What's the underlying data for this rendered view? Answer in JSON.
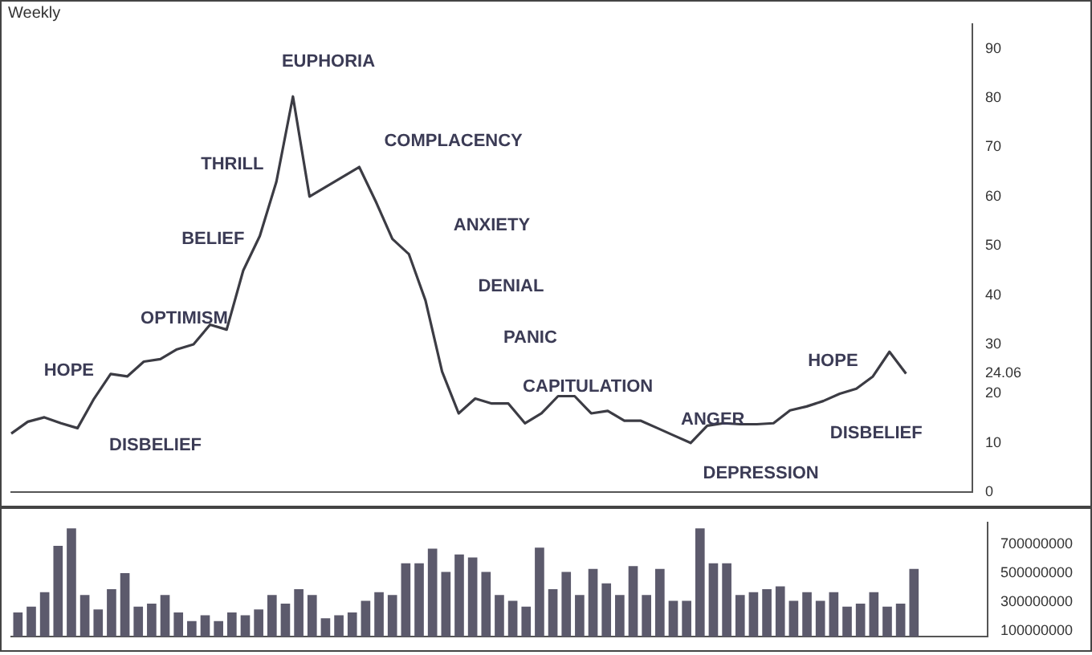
{
  "chart_data": [
    {
      "type": "line",
      "title": "Weekly",
      "categories": [
        null,
        null,
        null,
        null,
        null,
        null,
        null,
        null,
        null,
        null,
        null,
        null,
        null,
        null,
        null,
        null,
        null,
        null,
        null,
        null,
        null,
        null,
        null,
        null,
        null,
        null,
        null,
        null,
        null,
        null,
        null,
        null,
        null,
        null,
        null,
        null,
        null,
        null,
        null,
        null,
        null,
        null,
        null,
        null,
        null,
        null,
        null,
        null,
        null,
        null,
        null,
        null,
        null,
        null,
        null,
        null,
        null,
        null,
        null
      ],
      "series": [
        {
          "color": "#3c3c44",
          "values": [
            11.9,
            14.3,
            15.2,
            14,
            13,
            19,
            24,
            23.5,
            26.5,
            27,
            29,
            30,
            34,
            33,
            45,
            52,
            63,
            80.3,
            60,
            62,
            64,
            66,
            59,
            51.4,
            48.3,
            38.9,
            24.5,
            16,
            19,
            18,
            18,
            14,
            16,
            19.5,
            19.5,
            16,
            16.5,
            14.5,
            14.5,
            13,
            11.5,
            10,
            13.5,
            14,
            13.8,
            13.8,
            14,
            16.6,
            17.4,
            18.5,
            20,
            21,
            23.5,
            28.5,
            24.06,
            null,
            null,
            null,
            null
          ]
        }
      ],
      "ylim": [
        0,
        95
      ],
      "yticks": [
        0,
        10,
        20,
        {
          "value": 24.06,
          "label": "24.06"
        },
        30,
        40,
        50,
        60,
        70,
        80,
        90
      ],
      "annotations": [
        "EUPHORIA",
        "THRILL",
        "COMPLACENCY",
        "BELIEF",
        "ANXIETY",
        "DENIAL",
        "OPTIMISM",
        "PANIC",
        "HOPE",
        "CAPITULATION",
        "ANGER",
        "DISBELIEF",
        "DEPRESSION",
        "HOPE",
        "DISBELIEF"
      ],
      "grid": false,
      "legend": false,
      "marker": "none",
      "line_style": "solid"
    },
    {
      "type": "bar",
      "categories": [
        null,
        null,
        null,
        null,
        null,
        null,
        null,
        null,
        null,
        null,
        null,
        null,
        null,
        null,
        null,
        null,
        null,
        null,
        null,
        null,
        null,
        null,
        null,
        null,
        null,
        null,
        null,
        null,
        null,
        null,
        null,
        null,
        null,
        null,
        null,
        null,
        null,
        null,
        null,
        null,
        null,
        null,
        null,
        null,
        null,
        null,
        null,
        null,
        null,
        null,
        null,
        null,
        null,
        null,
        null,
        null,
        null,
        null,
        null,
        null,
        null,
        null,
        null,
        null,
        null,
        null,
        null,
        null,
        null,
        null,
        null,
        null,
        null
      ],
      "series": [
        {
          "color": "#5c5a6c",
          "values": [
            228000000,
            268000000,
            368000000,
            688000000,
            808000000,
            348000000,
            248000000,
            388000000,
            500000000,
            268000000,
            288000000,
            348000000,
            228000000,
            168000000,
            208000000,
            168000000,
            228000000,
            208000000,
            248000000,
            348000000,
            288000000,
            388000000,
            348000000,
            188000000,
            208000000,
            228000000,
            308000000,
            368000000,
            348000000,
            568000000,
            568000000,
            668000000,
            508000000,
            628000000,
            608000000,
            508000000,
            348000000,
            308000000,
            268000000,
            676000000,
            388000000,
            508000000,
            348000000,
            528000000,
            428000000,
            348000000,
            548000000,
            348000000,
            528000000,
            308000000,
            308000000,
            808000000,
            568000000,
            568000000,
            348000000,
            368000000,
            388000000,
            408000000,
            308000000,
            368000000,
            308000000,
            368000000,
            268000000,
            288000000,
            368000000,
            268000000,
            288000000,
            528000000,
            null,
            null,
            null,
            null,
            null
          ]
        }
      ],
      "ylim": [
        60000000,
        850000000
      ],
      "yticks": [
        {
          "value": 100000000,
          "label": "100000000"
        },
        {
          "value": 300000000,
          "label": "300000000"
        },
        {
          "value": 500000000,
          "label": "500000000"
        },
        {
          "value": 700000000,
          "label": "700000000"
        }
      ],
      "grid": false,
      "legend": false
    }
  ]
}
